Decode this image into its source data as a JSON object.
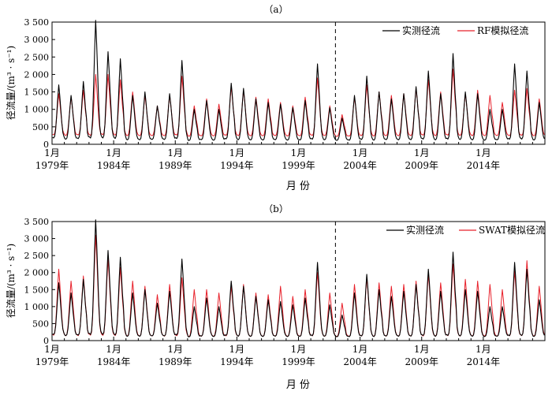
{
  "chart_data": [
    {
      "type": "line",
      "panel_label": "（a）",
      "ylabel": "径流量/(m³ · s⁻¹)",
      "xlabel": "月  份",
      "ylim": [
        0,
        3500
      ],
      "yticks": [
        0,
        500,
        1000,
        1500,
        2000,
        2500,
        3000,
        3500
      ],
      "ytick_labels": [
        "0",
        "500",
        "1 000",
        "1 500",
        "2 000",
        "2 500",
        "3 000",
        "3 500"
      ],
      "xlim": [
        1979.0,
        2019.0
      ],
      "xticks": [
        {
          "line1": "1月",
          "line2": "1979年",
          "x": 1979
        },
        {
          "line1": "1月",
          "line2": "1984年",
          "x": 1984
        },
        {
          "line1": "1月",
          "line2": "1989年",
          "x": 1989
        },
        {
          "line1": "1月",
          "line2": "1994年",
          "x": 1994
        },
        {
          "line1": "1月",
          "line2": "1999年",
          "x": 1999
        },
        {
          "line1": "1月",
          "line2": "2004年",
          "x": 2004
        },
        {
          "line1": "1月",
          "line2": "2009年",
          "x": 2009
        },
        {
          "line1": "1月",
          "line2": "2014年",
          "x": 2014
        }
      ],
      "divider_x": 2002.0,
      "legend_position": "top-right",
      "series": [
        {
          "name": "实测径流",
          "color": "#000000",
          "annual_peaks": [
            1700,
            1400,
            1800,
            3550,
            2650,
            2450,
            1400,
            1500,
            1100,
            1450,
            2400,
            1000,
            1250,
            1000,
            1750,
            1600,
            1300,
            1200,
            1150,
            1050,
            1250,
            2300,
            1050,
            750,
            1400,
            1950,
            1500,
            1300,
            1450,
            1650,
            2100,
            1450,
            2600,
            1500,
            1450,
            1000,
            1000,
            2300,
            2100,
            1200
          ],
          "annual_lows": [
            150,
            120,
            130,
            110,
            130,
            120,
            100,
            100,
            120,
            110,
            120,
            90,
            110,
            100,
            120,
            100,
            100,
            100,
            110,
            100,
            100,
            100,
            110,
            100,
            90,
            100,
            90,
            110,
            100,
            100,
            110,
            100,
            100,
            110,
            100,
            100,
            110,
            100,
            110,
            100
          ]
        },
        {
          "name": "RF模拟径流",
          "color": "#e8202a",
          "annual_peaks": [
            1450,
            1350,
            1550,
            2000,
            2000,
            1850,
            1500,
            1400,
            1100,
            1400,
            1950,
            1100,
            1300,
            1150,
            1650,
            1550,
            1350,
            1300,
            1200,
            1100,
            1350,
            1900,
            1100,
            850,
            1350,
            1700,
            1500,
            1400,
            1450,
            1600,
            1850,
            1500,
            2150,
            1450,
            1550,
            1400,
            1200,
            1550,
            1600,
            1300
          ],
          "annual_lows": [
            250,
            230,
            240,
            220,
            240,
            230,
            220,
            220,
            230,
            220,
            230,
            210,
            220,
            220,
            230,
            220,
            220,
            220,
            230,
            220,
            220,
            220,
            230,
            210,
            210,
            220,
            210,
            220,
            220,
            220,
            230,
            220,
            220,
            230,
            220,
            220,
            230,
            220,
            230,
            220
          ]
        }
      ]
    },
    {
      "type": "line",
      "panel_label": "（b）",
      "ylabel": "径流量/(m³ · s⁻¹)",
      "xlabel": "月  份",
      "ylim": [
        0,
        3500
      ],
      "yticks": [
        0,
        500,
        1000,
        1500,
        2000,
        2500,
        3000,
        3500
      ],
      "ytick_labels": [
        "0",
        "500",
        "1 000",
        "1 500",
        "2 000",
        "2 500",
        "3 000",
        "3 500"
      ],
      "xlim": [
        1979.0,
        2019.0
      ],
      "xticks": [
        {
          "line1": "1月",
          "line2": "1979年",
          "x": 1979
        },
        {
          "line1": "1月",
          "line2": "1984年",
          "x": 1984
        },
        {
          "line1": "1月",
          "line2": "1989年",
          "x": 1989
        },
        {
          "line1": "1月",
          "line2": "1994年",
          "x": 1994
        },
        {
          "line1": "1月",
          "line2": "1999年",
          "x": 1999
        },
        {
          "line1": "1月",
          "line2": "2004年",
          "x": 2004
        },
        {
          "line1": "1月",
          "line2": "2009年",
          "x": 2009
        },
        {
          "line1": "1月",
          "line2": "2014年",
          "x": 2014
        }
      ],
      "divider_x": 2002.0,
      "legend_position": "top-right",
      "series": [
        {
          "name": "实测径流",
          "color": "#000000",
          "annual_peaks": [
            1700,
            1400,
            1800,
            3550,
            2650,
            2450,
            1400,
            1500,
            1100,
            1450,
            2400,
            1000,
            1250,
            1000,
            1750,
            1600,
            1300,
            1200,
            1150,
            1050,
            1250,
            2300,
            1050,
            750,
            1400,
            1950,
            1500,
            1300,
            1450,
            1650,
            2100,
            1450,
            2600,
            1500,
            1450,
            1000,
            1000,
            2300,
            2100,
            1200
          ],
          "annual_lows": [
            150,
            120,
            130,
            110,
            130,
            120,
            100,
            100,
            120,
            110,
            120,
            90,
            110,
            100,
            120,
            100,
            100,
            100,
            110,
            100,
            100,
            100,
            110,
            100,
            90,
            100,
            90,
            110,
            100,
            100,
            110,
            100,
            100,
            110,
            100,
            100,
            110,
            100,
            110,
            100
          ]
        },
        {
          "name": "SWAT模拟径流",
          "color": "#e8202a",
          "annual_peaks": [
            2100,
            1750,
            1900,
            3100,
            2400,
            2150,
            1750,
            1600,
            1350,
            1650,
            1850,
            1500,
            1500,
            1400,
            1600,
            1650,
            1400,
            1350,
            1600,
            1300,
            1500,
            2000,
            1400,
            1100,
            1650,
            1850,
            1700,
            1600,
            1650,
            1750,
            1950,
            1700,
            2250,
            1800,
            1750,
            1650,
            1500,
            2050,
            2350,
            1600
          ],
          "annual_lows": [
            120,
            110,
            110,
            100,
            110,
            110,
            100,
            100,
            110,
            100,
            110,
            90,
            100,
            100,
            110,
            100,
            100,
            100,
            100,
            100,
            100,
            100,
            100,
            100,
            90,
            100,
            90,
            100,
            100,
            100,
            100,
            100,
            100,
            100,
            100,
            100,
            100,
            100,
            100,
            100
          ]
        }
      ]
    }
  ]
}
